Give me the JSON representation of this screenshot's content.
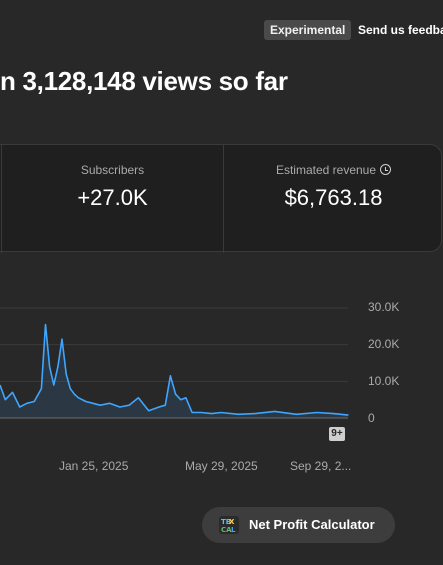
{
  "top_bar": {
    "badge": "Experimental",
    "feedback": "Send us feedba"
  },
  "headline": "n 3,128,148 views so far",
  "stats": [
    {
      "label": "Subscribers",
      "value": "+27.0K"
    },
    {
      "label": "Estimated revenue",
      "value": "$6,763.18"
    }
  ],
  "more_badge": "9+",
  "calculator_button": {
    "label": "Net Profit Calculator"
  },
  "chart_data": {
    "type": "area",
    "title": "",
    "xlabel": "",
    "ylabel": "",
    "ylim": [
      0,
      30000
    ],
    "y_ticks": [
      "30.0K",
      "20.0K",
      "10.0K",
      "0"
    ],
    "x_ticks": [
      "Jan 25, 2025",
      "May 29, 2025",
      "Sep 29, 2..."
    ],
    "grid": true,
    "series": [
      {
        "color": "#3ea6ff",
        "x": [
          "2024-10-26",
          "2024-11-01",
          "2024-11-08",
          "2024-11-15",
          "2024-11-22",
          "2024-11-29",
          "2024-12-06",
          "2024-12-10",
          "2024-12-14",
          "2024-12-18",
          "2024-12-22",
          "2024-12-26",
          "2024-12-30",
          "2025-01-03",
          "2025-01-07",
          "2025-01-11",
          "2025-01-18",
          "2025-01-25",
          "2025-02-01",
          "2025-02-10",
          "2025-02-20",
          "2025-03-01",
          "2025-03-10",
          "2025-03-20",
          "2025-03-30",
          "2025-04-05",
          "2025-04-10",
          "2025-04-15",
          "2025-04-20",
          "2025-04-25",
          "2025-05-01",
          "2025-05-10",
          "2025-05-20",
          "2025-05-29",
          "2025-06-15",
          "2025-07-01",
          "2025-07-20",
          "2025-08-10",
          "2025-08-30",
          "2025-09-15",
          "2025-09-29",
          "2025-10-20"
        ],
        "values": [
          9000,
          5000,
          7000,
          3000,
          4000,
          4500,
          8000,
          25500,
          14000,
          9000,
          14000,
          21500,
          12000,
          8000,
          6500,
          5500,
          4500,
          4000,
          3500,
          4000,
          3000,
          3500,
          5500,
          2000,
          3000,
          3500,
          11500,
          6500,
          5000,
          5500,
          1500,
          1500,
          1200,
          1500,
          1000,
          1200,
          1800,
          1000,
          1500,
          1200,
          800,
          700
        ]
      }
    ]
  },
  "colors": {
    "background": "#282828",
    "panel": "#1f1f1f",
    "line": "#3ea6ff"
  }
}
